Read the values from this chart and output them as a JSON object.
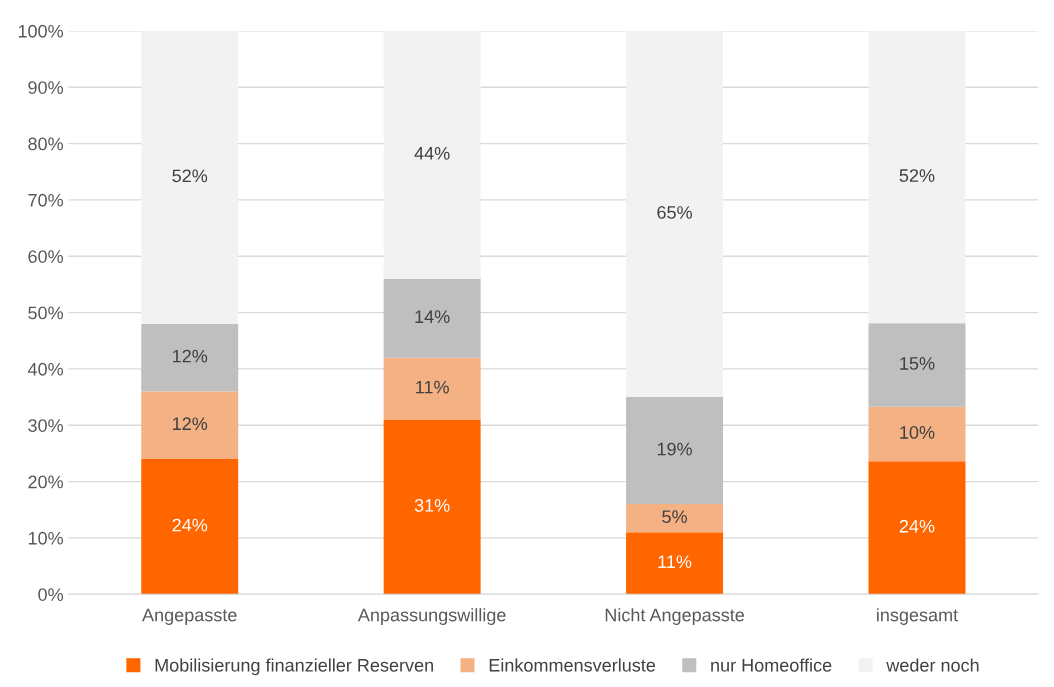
{
  "chart_data": {
    "type": "bar",
    "stacked": true,
    "categories": [
      "Angepasste",
      "Anpassungswillige",
      "Nicht Angepasste",
      "insgesamt"
    ],
    "series": [
      {
        "name": "Mobilisierung finanzieller Reserven",
        "color": "#ff6600",
        "values": [
          24,
          31,
          11,
          23.6
        ],
        "value_labels": [
          "24%",
          "31%",
          "11%",
          "24%"
        ]
      },
      {
        "name": "Einkommensverluste",
        "color": "#f4b183",
        "values": [
          12,
          11,
          5,
          9.7
        ],
        "value_labels": [
          "12%",
          "11%",
          "5%",
          "10%"
        ]
      },
      {
        "name": "nur Homeoffice",
        "color": "#bfbfbf",
        "values": [
          12,
          14,
          19,
          14.8
        ],
        "value_labels": [
          "12%",
          "14%",
          "19%",
          "15%"
        ]
      },
      {
        "name": "weder noch",
        "color": "#f2f2f2",
        "values": [
          52,
          44,
          65,
          51.9
        ],
        "value_labels": [
          "52%",
          "44%",
          "65%",
          "52%"
        ]
      }
    ],
    "ylim": [
      0,
      100
    ],
    "yticks": [
      {
        "value": 0,
        "label": "0%"
      },
      {
        "value": 10,
        "label": "10%"
      },
      {
        "value": 20,
        "label": "20%"
      },
      {
        "value": 30,
        "label": "30%"
      },
      {
        "value": 40,
        "label": "40%"
      },
      {
        "value": 50,
        "label": "50%"
      },
      {
        "value": 60,
        "label": "60%"
      },
      {
        "value": 70,
        "label": "70%"
      },
      {
        "value": 80,
        "label": "80%"
      },
      {
        "value": 90,
        "label": "90%"
      },
      {
        "value": 100,
        "label": "100%"
      }
    ],
    "grid": "y",
    "legend": "bottom"
  }
}
